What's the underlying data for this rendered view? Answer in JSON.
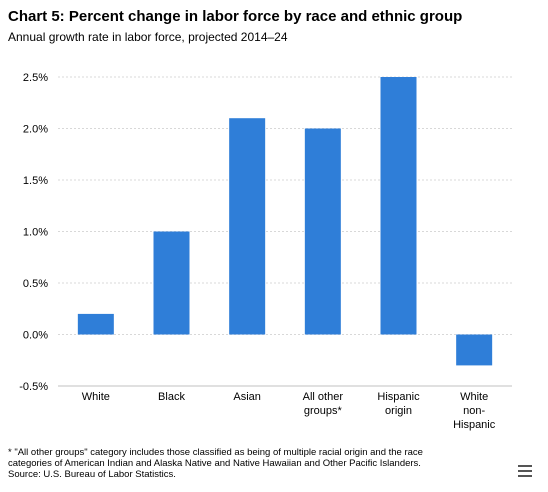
{
  "chart_data": {
    "type": "bar",
    "title": "Chart 5: Percent change in labor force by race and ethnic group",
    "subtitle": "Annual growth rate in labor force, projected 2014–24",
    "categories": [
      [
        "White"
      ],
      [
        "Black"
      ],
      [
        "Asian"
      ],
      [
        "All other",
        "groups*"
      ],
      [
        "Hispanic",
        "origin"
      ],
      [
        "White",
        "non-",
        "Hispanic"
      ]
    ],
    "values": [
      0.2,
      1.0,
      2.1,
      2.0,
      2.5,
      -0.3
    ],
    "yticks": [
      "-0.5%",
      "0.0%",
      "0.5%",
      "1.0%",
      "1.5%",
      "2.0%",
      "2.5%"
    ],
    "ylim": [
      -0.5,
      2.5
    ],
    "grid": true,
    "bar_color": "#2f7ed8"
  },
  "footnotes": {
    "line1": "* \"All other groups\" category includes those classified as being of multiple racial origin and the race",
    "line2": "categories of American Indian and Alaska Native and Native Hawaiian and Other Pacific Islanders.",
    "source": "Source: U.S. Bureau of Labor Statistics."
  },
  "menu_icon": "hamburger-menu-icon"
}
